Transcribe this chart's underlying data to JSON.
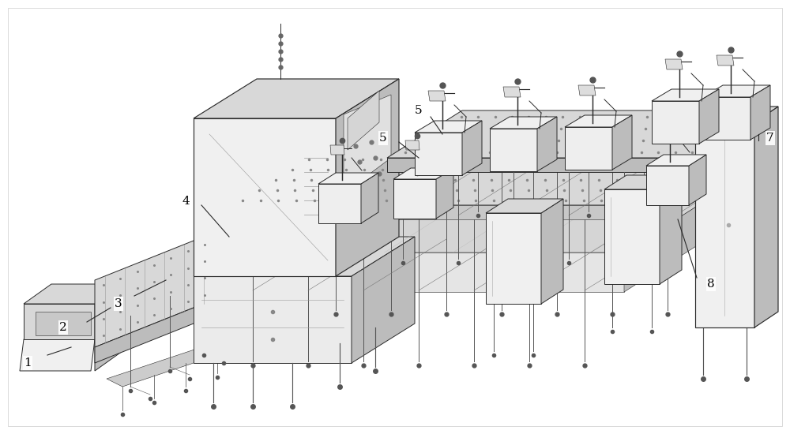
{
  "background_color": "#ffffff",
  "line_color": "#2a2a2a",
  "figure_width": 10.0,
  "figure_height": 5.5,
  "dpi": 100,
  "lw_main": 0.7,
  "lw_thin": 0.4,
  "face_light": "#f0f0f0",
  "face_mid": "#d8d8d8",
  "face_dark": "#bcbcbc",
  "face_darker": "#a8a8a8",
  "dot_color": "#888888",
  "label_fontsize": 11,
  "label_color": "#000000"
}
